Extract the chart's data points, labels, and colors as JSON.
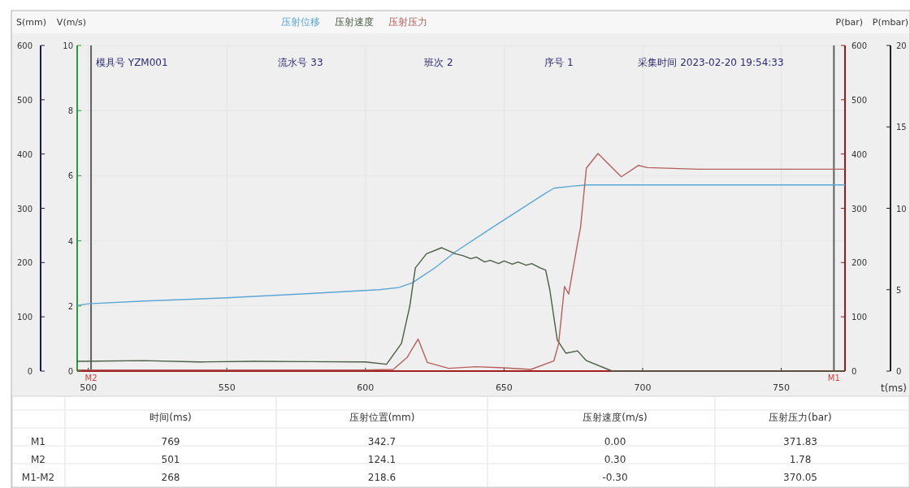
{
  "chart_data": {
    "type": "line",
    "legend": "top",
    "grid": true,
    "xlabel": "t(ms)",
    "ylabel": "V(m/s)",
    "y2label": "P(bar)",
    "y3label": "S(mm)",
    "xlim": [
      496,
      773
    ],
    "xticks": [
      500,
      550,
      600,
      650,
      700,
      750
    ],
    "ylim": [
      0,
      10
    ],
    "yticks": [
      0,
      2,
      4,
      6,
      8,
      10
    ],
    "y2lim": [
      0,
      600
    ],
    "y2ticks": [
      0,
      100,
      200,
      300,
      400,
      500,
      600
    ],
    "y3lim": [
      0,
      600
    ],
    "y3ticks": [
      0,
      100,
      200,
      300,
      400,
      500,
      600
    ],
    "ref_lines": [
      {
        "axis": "x",
        "value": 501,
        "label": "M2",
        "color": "#606060"
      },
      {
        "axis": "x",
        "value": 769,
        "label": "M1",
        "color": "#606060"
      }
    ],
    "series": [
      {
        "name": "压射位移",
        "color": "#5aa7d6",
        "axis": "y3",
        "x": [
          496,
          500,
          520,
          550,
          580,
          605,
          612,
          617,
          625,
          632.5,
          645,
          655,
          665,
          668,
          675,
          680,
          700,
          773
        ],
        "values": [
          121,
          124,
          129,
          135,
          143,
          150,
          154,
          163,
          190,
          220,
          262,
          295,
          328,
          337,
          341,
          343,
          343,
          343
        ]
      },
      {
        "name": "压射速度",
        "color": "#4b5d45",
        "axis": "y",
        "x": [
          496,
          520,
          540,
          560,
          580,
          600,
          607.6,
          613,
          616,
          618,
          622,
          627.5,
          632.5,
          635,
          638,
          640,
          643,
          645,
          648,
          650,
          653,
          655,
          658,
          660,
          663,
          665,
          666.5,
          669.2,
          672.3,
          676.5,
          679.7,
          689,
          700,
          773
        ],
        "values": [
          0.3,
          0.32,
          0.28,
          0.3,
          0.29,
          0.28,
          0.21,
          0.85,
          2.0,
          3.17,
          3.6,
          3.79,
          3.6,
          3.55,
          3.45,
          3.5,
          3.35,
          3.4,
          3.3,
          3.38,
          3.28,
          3.35,
          3.25,
          3.3,
          3.17,
          3.1,
          2.5,
          0.95,
          0.55,
          0.62,
          0.32,
          0,
          0,
          0
        ]
      },
      {
        "name": "压射压力",
        "color": "#b5605e",
        "axis": "y2",
        "x": [
          496,
          600,
          610,
          615,
          619,
          622.3,
          630,
          640,
          650,
          659.7,
          668,
          669.7,
          671.8,
          673.3,
          676.5,
          677.6,
          679.7,
          683.9,
          687,
          692.3,
          698.5,
          701.7,
          720,
          773
        ],
        "values": [
          2,
          2,
          3,
          25,
          59,
          16,
          5,
          8,
          6,
          3,
          19,
          51,
          156,
          142,
          235,
          265,
          374,
          401,
          385,
          358,
          379,
          375,
          372,
          372
        ]
      }
    ],
    "annotations": [
      "模具号 YZM001",
      "流水号 33",
      "班次 2",
      "序号 1",
      "采集时间 2023-02-20 19:54:33",
      "时间(ms)",
      "压射位置(mm)",
      "压射速度(m/s)",
      "压射压力(bar)",
      "M1",
      "769",
      "342.7",
      "0.00",
      "371.83",
      "M2",
      "501",
      "124.1",
      "0.30",
      "1.78",
      "M1-M2",
      "268",
      "218.6",
      "-0.30",
      "370.05",
      "P(mbar)",
      "0",
      "5",
      "10",
      "15",
      "20"
    ]
  }
}
